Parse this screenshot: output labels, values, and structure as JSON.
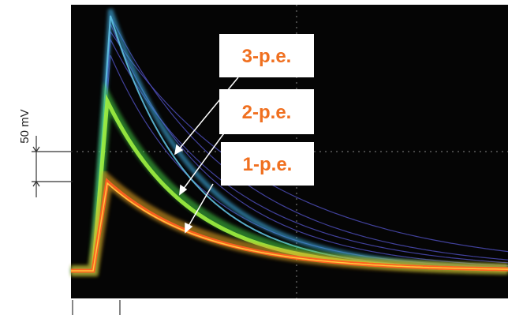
{
  "scale_label": "50 mV",
  "labels": [
    "3-p.e.",
    "2-p.e.",
    "1-p.e."
  ]
}
